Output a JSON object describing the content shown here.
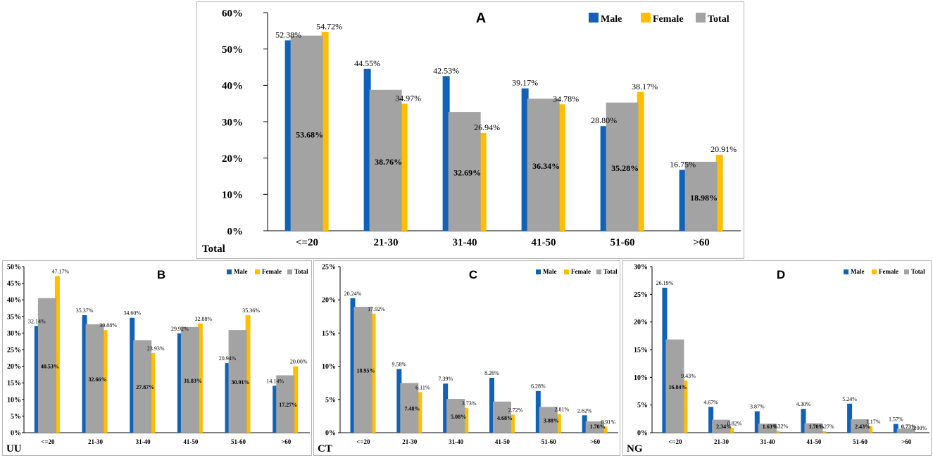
{
  "colors": {
    "male": "#0f62b8",
    "female": "#ffbe00",
    "total": "#a3a3a3"
  },
  "legend": [
    "Male",
    "Female",
    "Total"
  ],
  "chart_data": [
    {
      "type": "bar",
      "panel": "A",
      "corner_label": "Total",
      "categories": [
        "<=20",
        "21-30",
        "31-40",
        "41-50",
        "51-60",
        ">60"
      ],
      "series": [
        {
          "name": "Male",
          "values": [
            52.38,
            44.55,
            42.53,
            39.17,
            28.8,
            16.75
          ]
        },
        {
          "name": "Female",
          "values": [
            54.72,
            34.97,
            26.94,
            34.78,
            38.17,
            20.91
          ]
        },
        {
          "name": "Total",
          "values": [
            53.68,
            38.76,
            32.69,
            36.34,
            35.28,
            18.98
          ]
        }
      ],
      "value_labels": {
        "Male": [
          "52.38%",
          "44.55%",
          "42.53%",
          "39.17%",
          "28.80%",
          "16.75%"
        ],
        "Female": [
          "54.72%",
          "34.97%",
          "26.94%",
          "34.78%",
          "38.17%",
          "20.91%"
        ],
        "Total": [
          "53.68%",
          "38.76%",
          "32.69%",
          "36.34%",
          "35.28%",
          "18.98%"
        ]
      },
      "ylim": [
        0,
        60
      ],
      "yticks": [
        0,
        10,
        20,
        30,
        40,
        50,
        60
      ],
      "ytick_labels": [
        "0%",
        "10%",
        "20%",
        "30%",
        "40%",
        "50%",
        "60%"
      ],
      "legend_position": "top-right"
    },
    {
      "type": "bar",
      "panel": "B",
      "corner_label": "UU",
      "categories": [
        "<=20",
        "21-30",
        "31-40",
        "41-50",
        "51-60",
        ">60"
      ],
      "series": [
        {
          "name": "Male",
          "values": [
            32.14,
            35.37,
            34.6,
            29.92,
            20.94,
            14.14
          ]
        },
        {
          "name": "Female",
          "values": [
            47.17,
            30.88,
            23.93,
            32.88,
            35.36,
            20.0
          ]
        },
        {
          "name": "Total",
          "values": [
            40.53,
            32.66,
            27.87,
            31.83,
            30.91,
            17.27
          ]
        }
      ],
      "value_labels": {
        "Male": [
          "32.14%",
          "35.37%",
          "34.60%",
          "29.92%",
          "20.94%",
          "14.14%"
        ],
        "Female": [
          "47.17%",
          "30.88%",
          "23.93%",
          "32.88%",
          "35.36%",
          "20.00%"
        ],
        "Total": [
          "40.53%",
          "32.66%",
          "27.87%",
          "31.83%",
          "30.91%",
          "17.27%"
        ]
      },
      "ylim": [
        0,
        50
      ],
      "yticks": [
        0,
        5,
        10,
        15,
        20,
        25,
        30,
        35,
        40,
        45,
        50
      ],
      "ytick_labels": [
        "0%",
        "5%",
        "10%",
        "15%",
        "20%",
        "25%",
        "30%",
        "35%",
        "40%",
        "45%",
        "50%"
      ],
      "legend_position": "top-right"
    },
    {
      "type": "bar",
      "panel": "C",
      "corner_label": "CT",
      "categories": [
        "<=20",
        "21-30",
        "31-40",
        "41-50",
        "51-60",
        ">60"
      ],
      "series": [
        {
          "name": "Male",
          "values": [
            20.24,
            9.58,
            7.39,
            8.26,
            6.28,
            2.62
          ]
        },
        {
          "name": "Female",
          "values": [
            17.92,
            6.11,
            3.73,
            2.72,
            2.81,
            0.91
          ]
        },
        {
          "name": "Total",
          "values": [
            18.95,
            7.48,
            5.08,
            4.68,
            3.88,
            1.7
          ]
        }
      ],
      "value_labels": {
        "Male": [
          "20.24%",
          "9.58%",
          "7.39%",
          "8.26%",
          "6.28%",
          "2.62%"
        ],
        "Female": [
          "17.92%",
          "6.11%",
          "3.73%",
          "2.72%",
          "2.81%",
          "0.91%"
        ],
        "Total": [
          "18.95%",
          "7.48%",
          "5.08%",
          "4.68%",
          "3.88%",
          "1.70%"
        ]
      },
      "ylim": [
        0,
        25
      ],
      "yticks": [
        0,
        5,
        10,
        15,
        20,
        25
      ],
      "ytick_labels": [
        "0%",
        "5%",
        "10%",
        "15%",
        "20%",
        "25%"
      ],
      "legend_position": "top-right"
    },
    {
      "type": "bar",
      "panel": "D",
      "corner_label": "NG",
      "categories": [
        "<=20",
        "21-30",
        "31-40",
        "41-50",
        "51-60",
        ">60"
      ],
      "series": [
        {
          "name": "Male",
          "values": [
            26.19,
            4.67,
            3.87,
            4.3,
            5.24,
            1.57
          ]
        },
        {
          "name": "Female",
          "values": [
            9.43,
            0.82,
            0.32,
            0.27,
            1.17,
            0.0
          ]
        },
        {
          "name": "Total",
          "values": [
            16.84,
            2.34,
            1.63,
            1.7,
            2.43,
            0.73
          ]
        }
      ],
      "value_labels": {
        "Male": [
          "26.19%",
          "4.67%",
          "3.87%",
          "4.30%",
          "5.24%",
          "1.57%"
        ],
        "Female": [
          "9.43%",
          "0.82%",
          "0.32%",
          "0.27%",
          "1.17%",
          "0.00%"
        ],
        "Total": [
          "16.84%",
          "2.34%",
          "1.63%",
          "1.70%",
          "2.43%",
          "0.73%"
        ]
      },
      "ylim": [
        0,
        30
      ],
      "yticks": [
        0,
        5,
        10,
        15,
        20,
        25,
        30
      ],
      "ytick_labels": [
        "0%",
        "5%",
        "10%",
        "15%",
        "20%",
        "25%",
        "30%"
      ],
      "legend_position": "top-right"
    }
  ]
}
